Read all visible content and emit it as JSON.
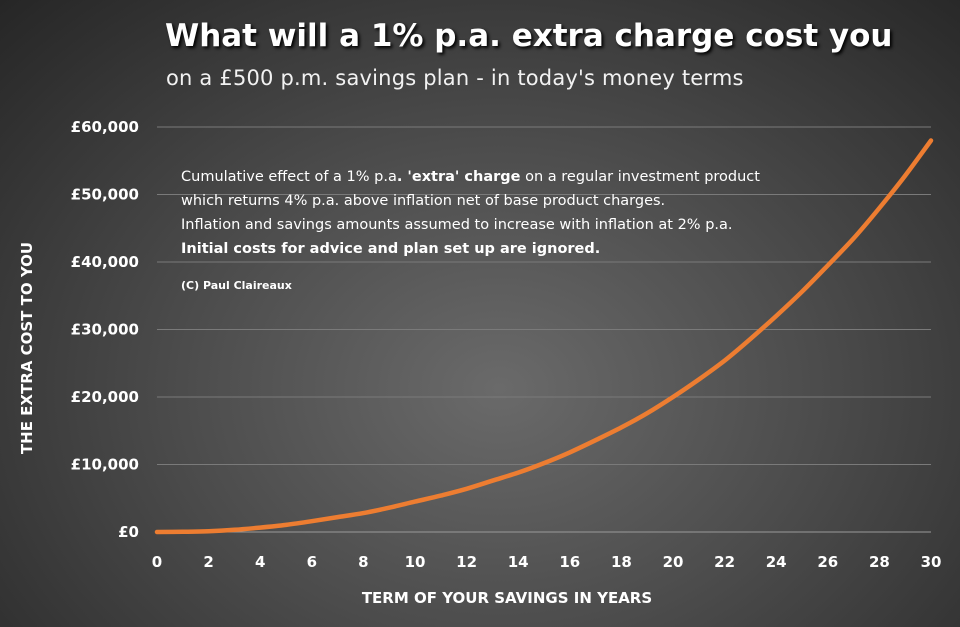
{
  "chart_data": {
    "type": "line",
    "title": "What will a 1% p.a. extra charge cost you",
    "subtitle": "on a £500 p.m. savings plan - in today's money terms",
    "xlabel": "TERM OF YOUR SAVINGS  IN YEARS",
    "ylabel": "THE EXTRA COST TO YOU",
    "xlim": [
      0,
      30
    ],
    "ylim": [
      0,
      60000
    ],
    "x_ticks": [
      0,
      2,
      4,
      6,
      8,
      10,
      12,
      14,
      16,
      18,
      20,
      22,
      24,
      26,
      28,
      30
    ],
    "y_ticks": [
      {
        "value": 0,
        "label": "£0"
      },
      {
        "value": 10000,
        "label": "£10,000"
      },
      {
        "value": 20000,
        "label": "£20,000"
      },
      {
        "value": 30000,
        "label": "£30,000"
      },
      {
        "value": 40000,
        "label": "£40,000"
      },
      {
        "value": 50000,
        "label": "£50,000"
      },
      {
        "value": 60000,
        "label": "£60,000"
      }
    ],
    "grid": true,
    "series": [
      {
        "color": "#ed7d31",
        "x": [
          0,
          1,
          2,
          3,
          4,
          5,
          6,
          7,
          8,
          9,
          10,
          11,
          12,
          13,
          14,
          15,
          16,
          17,
          18,
          19,
          20,
          21,
          22,
          23,
          24,
          25,
          26,
          27,
          28,
          29,
          30
        ],
        "y": [
          0,
          30,
          100,
          320,
          650,
          1050,
          1600,
          2200,
          2800,
          3600,
          4500,
          5400,
          6400,
          7600,
          8800,
          10200,
          11800,
          13600,
          15500,
          17600,
          20000,
          22600,
          25400,
          28600,
          32000,
          35600,
          39500,
          43500,
          48000,
          52800,
          58000
        ]
      }
    ],
    "annotation": {
      "l1_pre": "Cumulative effect of a 1% p.a",
      "l1_dot": ". ",
      "l1_bold": "'extra' charge",
      "l1_post": " on a regular investment product",
      "l2": "which returns 4% p.a. above inflation net of base product charges.",
      "l3": "Inflation and savings amounts assumed to increase with inflation at 2% p.a.",
      "l4": "Initial costs for advice and plan set up are ignored.",
      "credit": "(C) Paul Claireaux"
    }
  }
}
